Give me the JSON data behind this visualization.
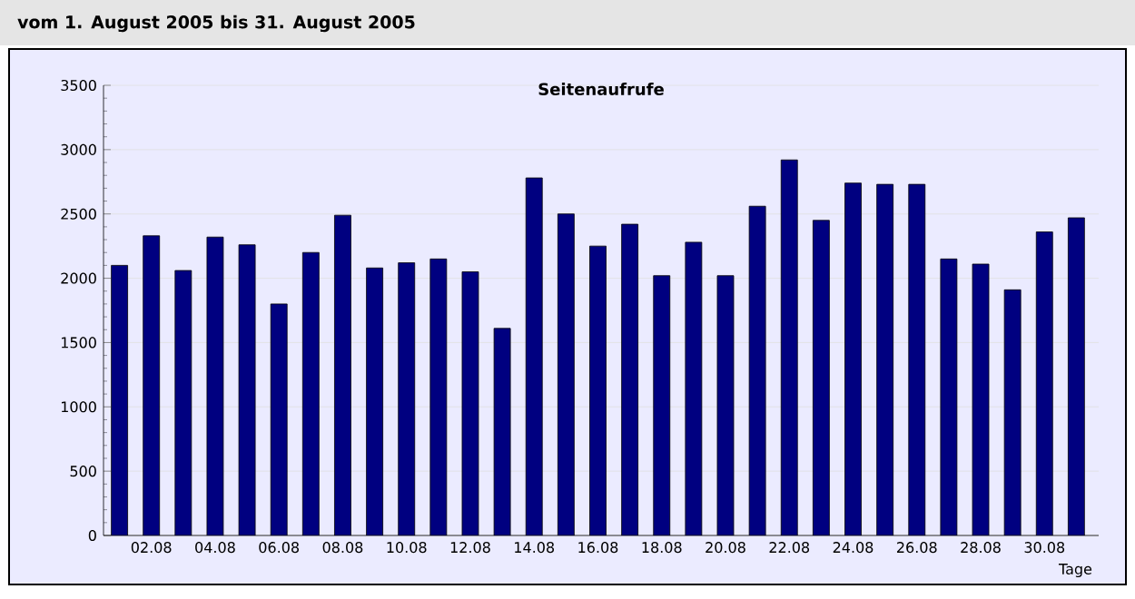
{
  "chart_data": {
    "type": "bar",
    "title": "Seitenaufrufe",
    "subtitle": "vom 1. August 2005  bis 31. August 2005",
    "xlabel": "Tage",
    "categories": [
      null,
      "02.08",
      null,
      "04.08",
      null,
      "06.08",
      null,
      "08.08",
      null,
      "10.08",
      null,
      "12.08",
      null,
      "14.08",
      null,
      "16.08",
      null,
      "18.08",
      null,
      "20.08",
      null,
      "22.08",
      null,
      "24.08",
      null,
      "26.08",
      null,
      "28.08",
      null,
      "30.08",
      null
    ],
    "values": [
      2100,
      2330,
      2060,
      2320,
      2260,
      1800,
      2200,
      2490,
      2080,
      2120,
      2150,
      2050,
      1610,
      2780,
      2500,
      2250,
      2420,
      2020,
      2280,
      2020,
      2560,
      2920,
      2450,
      2740,
      2730,
      2730,
      2150,
      2110,
      1910,
      2360,
      2470
    ],
    "color": "#000080",
    "ylim": [
      0,
      3500
    ],
    "yticks": [
      0,
      500,
      1000,
      1500,
      2000,
      2500,
      3000,
      3500
    ],
    "grid": "y"
  }
}
